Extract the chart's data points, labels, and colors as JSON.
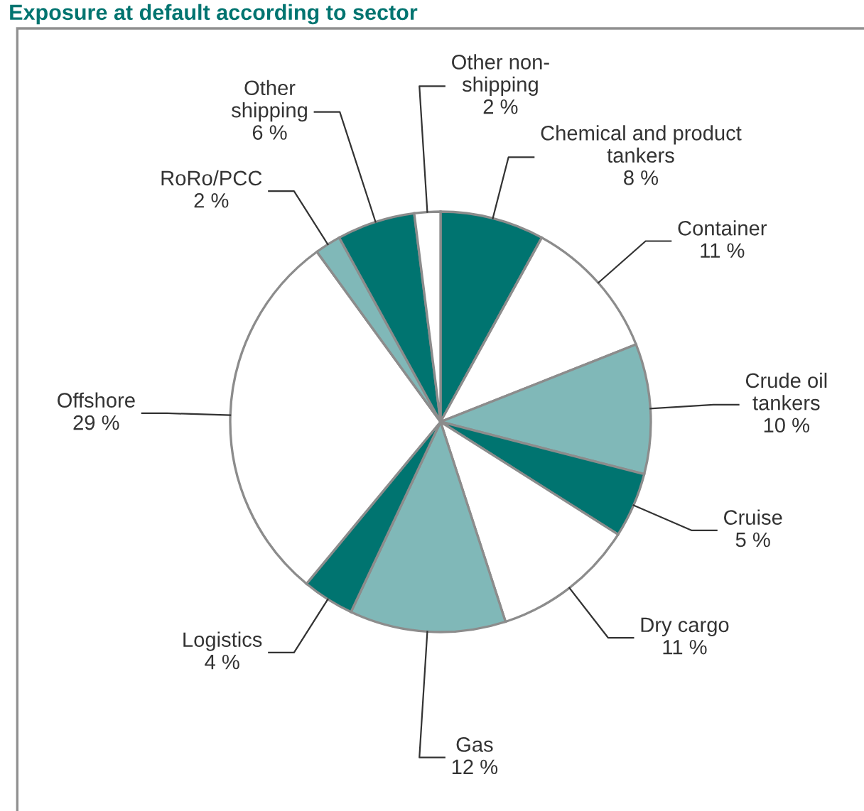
{
  "chart_data": {
    "type": "pie",
    "title": "Exposure at default according to sector",
    "categories": [
      "Chemical and product\ntankers",
      "Container",
      "Crude oil\ntankers",
      "Cruise",
      "Dry cargo",
      "Gas",
      "Logistics",
      "Offshore",
      "RoRo/PCC",
      "Other\nshipping",
      "Other non-\nshipping"
    ],
    "values": [
      8,
      11,
      10,
      5,
      11,
      12,
      4,
      29,
      2,
      6,
      2
    ],
    "colors": [
      "#007470",
      "#ffffff",
      "#80b8b8",
      "#007470",
      "#ffffff",
      "#80b8b8",
      "#007470",
      "#ffffff",
      "#80b8b8",
      "#007470",
      "#ffffff"
    ],
    "value_labels": [
      "8 %",
      "11 %",
      "10 %",
      "5 %",
      "11 %",
      "12 %",
      "4 %",
      "29 %",
      "2 %",
      "6 %",
      "2 %"
    ]
  }
}
